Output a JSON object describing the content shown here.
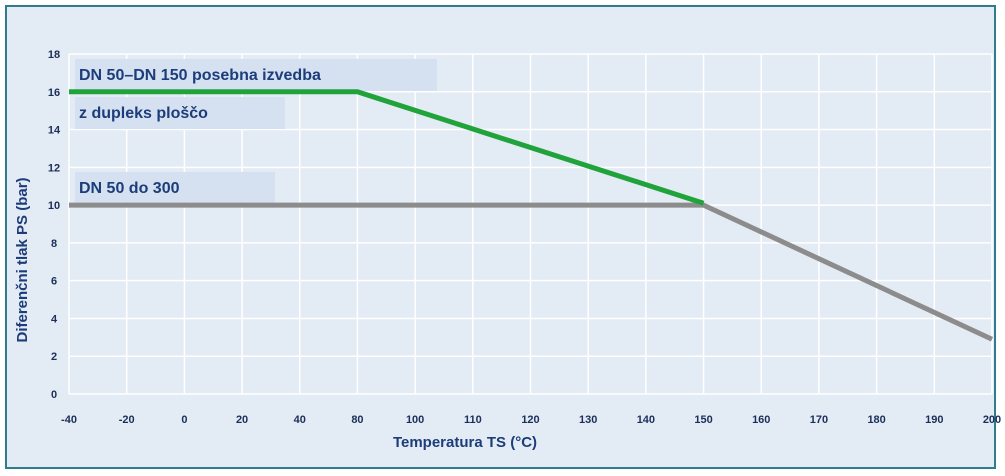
{
  "chart_data": {
    "type": "line",
    "xlabel": "Temperatura TS (°C)",
    "ylabel": "Diferenčni tlak PS (bar)",
    "x_ticks": [
      "-40",
      "-20",
      "0",
      "20",
      "40",
      "80",
      "100",
      "110",
      "120",
      "130",
      "140",
      "150",
      "160",
      "170",
      "180",
      "190",
      "200"
    ],
    "y_ticks": [
      "0",
      "2",
      "4",
      "6",
      "8",
      "10",
      "12",
      "14",
      "16",
      "18"
    ],
    "ylim": [
      0,
      18
    ],
    "grid": true,
    "series": [
      {
        "name_lines": [
          "DN 50–DN 150 posebna izvedba",
          "z dupleks ploščo"
        ],
        "color": "#1fa33a",
        "points": [
          [
            "-40",
            16
          ],
          [
            "80",
            16
          ],
          [
            "150",
            10.1
          ]
        ]
      },
      {
        "name_lines": [
          "DN 50 do 300"
        ],
        "color": "#8c8c8c",
        "points": [
          [
            "-40",
            10
          ],
          [
            "150",
            10
          ],
          [
            "200",
            2.9
          ]
        ]
      }
    ]
  }
}
